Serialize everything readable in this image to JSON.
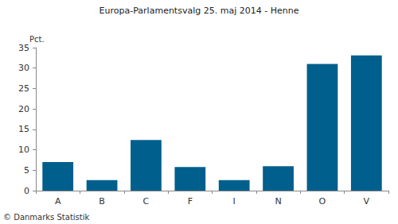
{
  "chart_data": {
    "type": "bar",
    "title": "Europa-Parlamentsvalg 25. maj 2014 - Henne",
    "y_label": "Pct.",
    "annotation": "© Danmarks Statistik",
    "categories": [
      "A",
      "B",
      "C",
      "F",
      "I",
      "N",
      "O",
      "V"
    ],
    "values": [
      7.0,
      2.6,
      12.4,
      5.8,
      2.6,
      6.0,
      31.0,
      33.1
    ],
    "color": "#005f8c",
    "ylim": [
      0,
      35
    ],
    "yticks": [
      0,
      5,
      10,
      15,
      20,
      25,
      30,
      35
    ],
    "grid": false
  }
}
